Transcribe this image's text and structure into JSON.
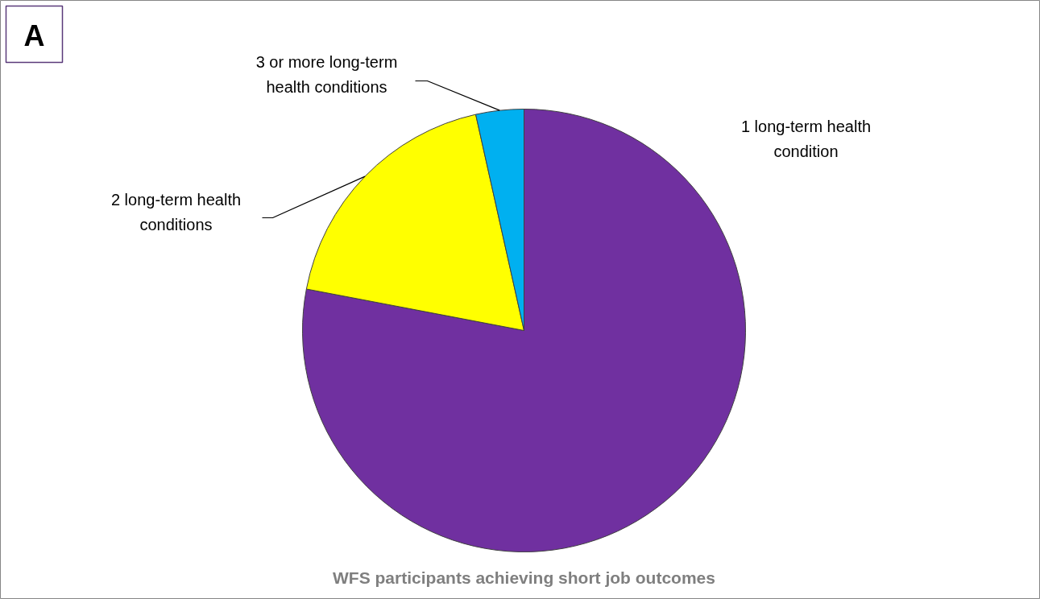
{
  "chart_data": {
    "type": "pie",
    "title": "WFS participants achieving short job outcomes",
    "categories": [
      "1 long-term health\ncondition",
      "2 long-term health\nconditions",
      "3 or more long-term\nhealth conditions"
    ],
    "values": [
      78,
      18.5,
      3.5
    ],
    "colors": [
      "#7030a0",
      "#ffff00",
      "#00b0f0"
    ],
    "annotations": [
      "A"
    ]
  }
}
